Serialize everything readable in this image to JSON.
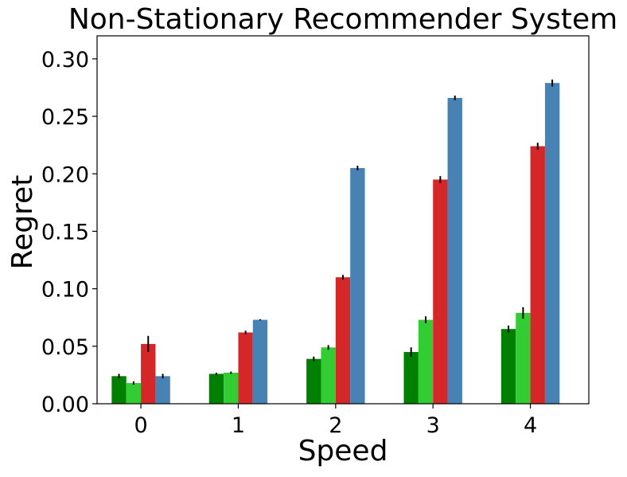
{
  "chart_data": {
    "type": "bar",
    "title": "Non-Stationary Recommender System",
    "xlabel": "Speed",
    "ylabel": "Regret",
    "categories": [
      "0",
      "1",
      "2",
      "3",
      "4"
    ],
    "ylim": [
      0,
      0.32
    ],
    "yticks": [
      "0.00",
      "0.05",
      "0.10",
      "0.15",
      "0.20",
      "0.25",
      "0.30"
    ],
    "yticks_values": [
      0,
      0.05,
      0.1,
      0.15,
      0.2,
      0.25,
      0.3
    ],
    "grid": false,
    "legend": "none",
    "series": [
      {
        "color": "#008000",
        "values": [
          0.024,
          0.026,
          0.039,
          0.045,
          0.065
        ],
        "errors": [
          0.002,
          0.001,
          0.002,
          0.004,
          0.003
        ]
      },
      {
        "color": "#32cd32",
        "values": [
          0.018,
          0.027,
          0.049,
          0.073,
          0.079
        ],
        "errors": [
          0.0015,
          0.001,
          0.002,
          0.003,
          0.005
        ]
      },
      {
        "color": "#d62728",
        "values": [
          0.052,
          0.062,
          0.11,
          0.195,
          0.224
        ],
        "errors": [
          0.007,
          0.0015,
          0.002,
          0.003,
          0.003
        ]
      },
      {
        "color": "#4682b4",
        "values": [
          0.024,
          0.073,
          0.205,
          0.266,
          0.279
        ],
        "errors": [
          0.002,
          0.0005,
          0.002,
          0.002,
          0.003
        ]
      }
    ]
  }
}
